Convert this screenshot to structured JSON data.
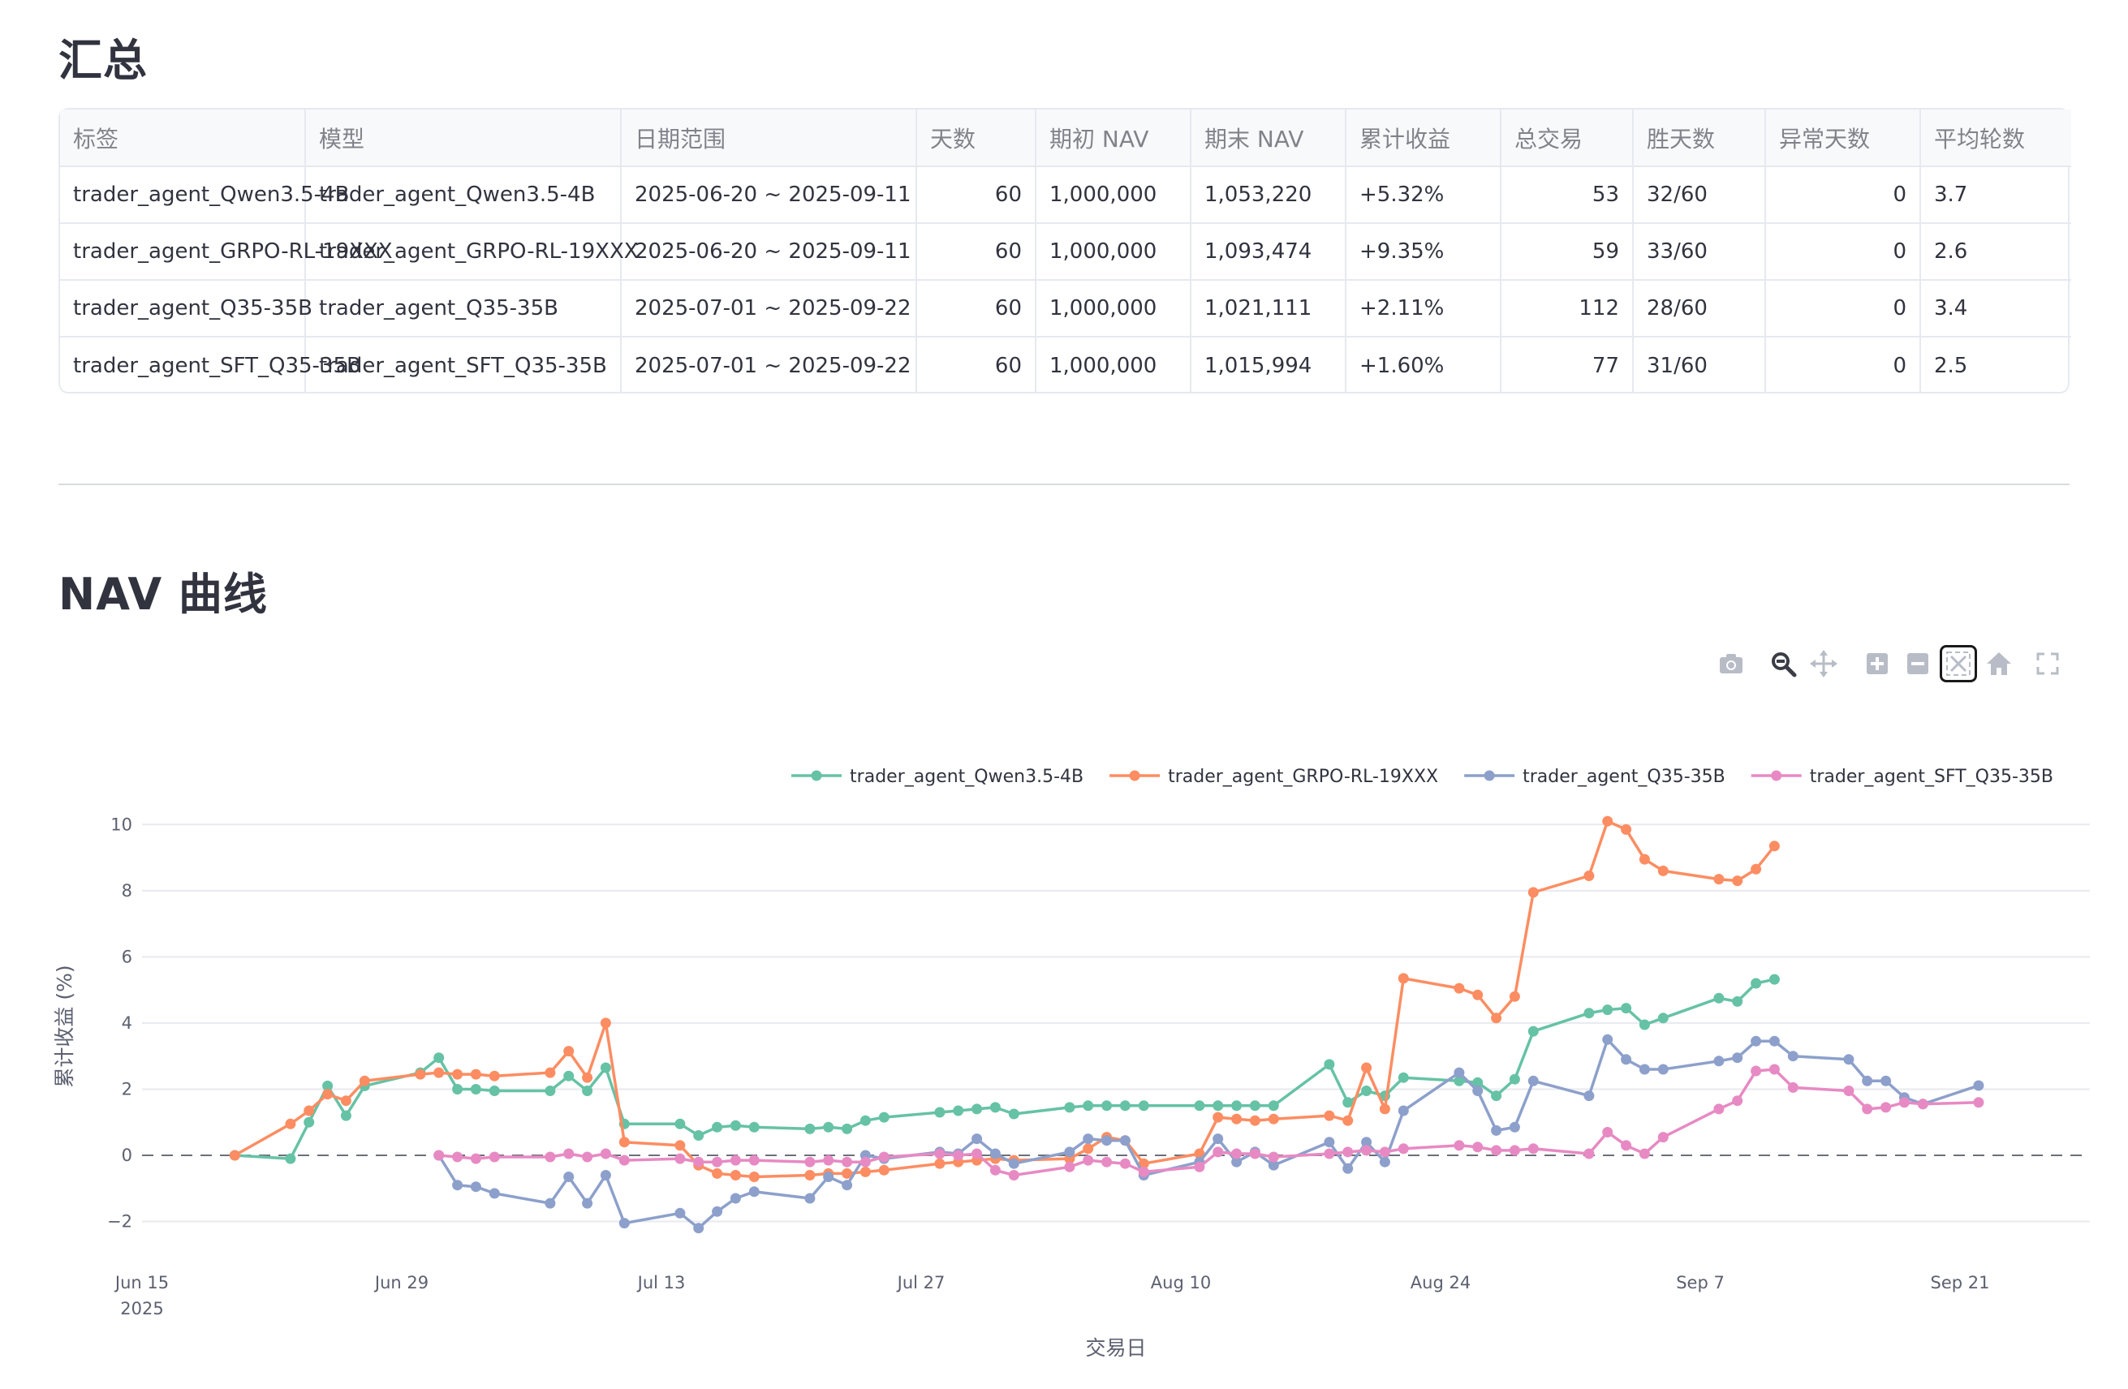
{
  "summary": {
    "title": "汇总",
    "columns": [
      "标签",
      "模型",
      "日期范围",
      "天数",
      "期初 NAV",
      "期末 NAV",
      "累计收益",
      "总交易",
      "胜天数",
      "异常天数",
      "平均轮数"
    ],
    "rows": [
      [
        "trader_agent_Qwen3.5-4B",
        "trader_agent_Qwen3.5-4B",
        "2025-06-20 ~ 2025-09-11",
        "60",
        "1,000,000",
        "1,053,220",
        "+5.32%",
        "53",
        "32/60",
        "0",
        "3.7"
      ],
      [
        "trader_agent_GRPO-RL-19XXX",
        "trader_agent_GRPO-RL-19XXX",
        "2025-06-20 ~ 2025-09-11",
        "60",
        "1,000,000",
        "1,093,474",
        "+9.35%",
        "59",
        "33/60",
        "0",
        "2.6"
      ],
      [
        "trader_agent_Q35-35B",
        "trader_agent_Q35-35B",
        "2025-07-01 ~ 2025-09-22",
        "60",
        "1,000,000",
        "1,021,111",
        "+2.11%",
        "112",
        "28/60",
        "0",
        "3.4"
      ],
      [
        "trader_agent_SFT_Q35-35B",
        "trader_agent_SFT_Q35-35B",
        "2025-07-01 ~ 2025-09-22",
        "60",
        "1,000,000",
        "1,015,994",
        "+1.60%",
        "77",
        "31/60",
        "0",
        "2.5"
      ]
    ]
  },
  "nav": {
    "title": "NAV 曲线",
    "toolbar": [
      {
        "name": "camera-icon"
      },
      {
        "name": "zoom-icon"
      },
      {
        "name": "pan-icon"
      },
      {
        "name": "zoom-in-icon"
      },
      {
        "name": "zoom-out-icon"
      },
      {
        "name": "autoscale-icon"
      },
      {
        "name": "home-icon"
      },
      {
        "name": "fullscreen-icon"
      }
    ]
  },
  "chart_data": {
    "type": "line",
    "xlabel": "交易日",
    "ylabel": "累计收益 (%)",
    "xlim": [
      "2025-06-15",
      "2025-09-28"
    ],
    "ylim": [
      -2.6,
      10.4
    ],
    "x_ticks": [
      {
        "date": "2025-06-15",
        "label": "Jun 15",
        "sub": "2025"
      },
      {
        "date": "2025-06-29",
        "label": "Jun 29"
      },
      {
        "date": "2025-07-13",
        "label": "Jul 13"
      },
      {
        "date": "2025-07-27",
        "label": "Jul 27"
      },
      {
        "date": "2025-08-10",
        "label": "Aug 10"
      },
      {
        "date": "2025-08-24",
        "label": "Aug 24"
      },
      {
        "date": "2025-09-07",
        "label": "Sep 7"
      },
      {
        "date": "2025-09-21",
        "label": "Sep 21"
      }
    ],
    "y_ticks": [
      -2,
      0,
      2,
      4,
      6,
      8,
      10
    ],
    "zero_line": "dashed",
    "grid": true,
    "legend": "top-right",
    "series": [
      {
        "name": "trader_agent_Qwen3.5-4B",
        "color": "#66c2a5",
        "points": [
          [
            "2025-06-20",
            0
          ],
          [
            "2025-06-23",
            -0.1
          ],
          [
            "2025-06-24",
            1.0
          ],
          [
            "2025-06-25",
            2.1
          ],
          [
            "2025-06-26",
            1.2
          ],
          [
            "2025-06-27",
            2.1
          ],
          [
            "2025-06-30",
            2.5
          ],
          [
            "2025-07-01",
            2.95
          ],
          [
            "2025-07-02",
            2.0
          ],
          [
            "2025-07-03",
            2.0
          ],
          [
            "2025-07-04",
            1.95
          ],
          [
            "2025-07-07",
            1.95
          ],
          [
            "2025-07-08",
            2.4
          ],
          [
            "2025-07-09",
            1.95
          ],
          [
            "2025-07-10",
            2.65
          ],
          [
            "2025-07-11",
            0.95
          ],
          [
            "2025-07-14",
            0.95
          ],
          [
            "2025-07-15",
            0.6
          ],
          [
            "2025-07-16",
            0.85
          ],
          [
            "2025-07-17",
            0.9
          ],
          [
            "2025-07-18",
            0.85
          ],
          [
            "2025-07-21",
            0.8
          ],
          [
            "2025-07-22",
            0.85
          ],
          [
            "2025-07-23",
            0.8
          ],
          [
            "2025-07-24",
            1.05
          ],
          [
            "2025-07-25",
            1.15
          ],
          [
            "2025-07-28",
            1.3
          ],
          [
            "2025-07-29",
            1.35
          ],
          [
            "2025-07-30",
            1.4
          ],
          [
            "2025-07-31",
            1.45
          ],
          [
            "2025-08-01",
            1.25
          ],
          [
            "2025-08-04",
            1.45
          ],
          [
            "2025-08-05",
            1.5
          ],
          [
            "2025-08-06",
            1.5
          ],
          [
            "2025-08-07",
            1.5
          ],
          [
            "2025-08-08",
            1.5
          ],
          [
            "2025-08-11",
            1.5
          ],
          [
            "2025-08-12",
            1.5
          ],
          [
            "2025-08-13",
            1.5
          ],
          [
            "2025-08-14",
            1.5
          ],
          [
            "2025-08-15",
            1.5
          ],
          [
            "2025-08-18",
            2.75
          ],
          [
            "2025-08-19",
            1.6
          ],
          [
            "2025-08-20",
            1.95
          ],
          [
            "2025-08-21",
            1.8
          ],
          [
            "2025-08-22",
            2.35
          ],
          [
            "2025-08-25",
            2.25
          ],
          [
            "2025-08-26",
            2.2
          ],
          [
            "2025-08-27",
            1.8
          ],
          [
            "2025-08-28",
            2.3
          ],
          [
            "2025-08-29",
            3.75
          ],
          [
            "2025-09-01",
            4.3
          ],
          [
            "2025-09-02",
            4.4
          ],
          [
            "2025-09-03",
            4.45
          ],
          [
            "2025-09-04",
            3.95
          ],
          [
            "2025-09-05",
            4.15
          ],
          [
            "2025-09-08",
            4.75
          ],
          [
            "2025-09-09",
            4.65
          ],
          [
            "2025-09-10",
            5.2
          ],
          [
            "2025-09-11",
            5.32
          ]
        ]
      },
      {
        "name": "trader_agent_GRPO-RL-19XXX",
        "color": "#fc8d62",
        "points": [
          [
            "2025-06-20",
            0
          ],
          [
            "2025-06-23",
            0.95
          ],
          [
            "2025-06-24",
            1.35
          ],
          [
            "2025-06-25",
            1.85
          ],
          [
            "2025-06-26",
            1.65
          ],
          [
            "2025-06-27",
            2.25
          ],
          [
            "2025-06-30",
            2.45
          ],
          [
            "2025-07-01",
            2.5
          ],
          [
            "2025-07-02",
            2.45
          ],
          [
            "2025-07-03",
            2.45
          ],
          [
            "2025-07-04",
            2.4
          ],
          [
            "2025-07-07",
            2.5
          ],
          [
            "2025-07-08",
            3.15
          ],
          [
            "2025-07-09",
            2.35
          ],
          [
            "2025-07-10",
            4.0
          ],
          [
            "2025-07-11",
            0.4
          ],
          [
            "2025-07-14",
            0.3
          ],
          [
            "2025-07-15",
            -0.3
          ],
          [
            "2025-07-16",
            -0.55
          ],
          [
            "2025-07-17",
            -0.6
          ],
          [
            "2025-07-18",
            -0.65
          ],
          [
            "2025-07-21",
            -0.6
          ],
          [
            "2025-07-22",
            -0.55
          ],
          [
            "2025-07-23",
            -0.55
          ],
          [
            "2025-07-24",
            -0.5
          ],
          [
            "2025-07-25",
            -0.45
          ],
          [
            "2025-07-28",
            -0.25
          ],
          [
            "2025-07-29",
            -0.2
          ],
          [
            "2025-07-30",
            -0.15
          ],
          [
            "2025-07-31",
            -0.1
          ],
          [
            "2025-08-01",
            -0.15
          ],
          [
            "2025-08-04",
            -0.1
          ],
          [
            "2025-08-05",
            0.2
          ],
          [
            "2025-08-06",
            0.55
          ],
          [
            "2025-08-07",
            0.45
          ],
          [
            "2025-08-08",
            -0.25
          ],
          [
            "2025-08-11",
            0.05
          ],
          [
            "2025-08-12",
            1.15
          ],
          [
            "2025-08-13",
            1.1
          ],
          [
            "2025-08-14",
            1.05
          ],
          [
            "2025-08-15",
            1.1
          ],
          [
            "2025-08-18",
            1.2
          ],
          [
            "2025-08-19",
            1.05
          ],
          [
            "2025-08-20",
            2.65
          ],
          [
            "2025-08-21",
            1.4
          ],
          [
            "2025-08-22",
            5.35
          ],
          [
            "2025-08-25",
            5.05
          ],
          [
            "2025-08-26",
            4.85
          ],
          [
            "2025-08-27",
            4.15
          ],
          [
            "2025-08-28",
            4.8
          ],
          [
            "2025-08-29",
            7.95
          ],
          [
            "2025-09-01",
            8.45
          ],
          [
            "2025-09-02",
            10.1
          ],
          [
            "2025-09-03",
            9.85
          ],
          [
            "2025-09-04",
            8.95
          ],
          [
            "2025-09-05",
            8.6
          ],
          [
            "2025-09-08",
            8.35
          ],
          [
            "2025-09-09",
            8.3
          ],
          [
            "2025-09-10",
            8.65
          ],
          [
            "2025-09-11",
            9.35
          ]
        ]
      },
      {
        "name": "trader_agent_Q35-35B",
        "color": "#8da0cb",
        "points": [
          [
            "2025-07-01",
            0
          ],
          [
            "2025-07-02",
            -0.9
          ],
          [
            "2025-07-03",
            -0.95
          ],
          [
            "2025-07-04",
            -1.15
          ],
          [
            "2025-07-07",
            -1.45
          ],
          [
            "2025-07-08",
            -0.65
          ],
          [
            "2025-07-09",
            -1.45
          ],
          [
            "2025-07-10",
            -0.6
          ],
          [
            "2025-07-11",
            -2.05
          ],
          [
            "2025-07-14",
            -1.75
          ],
          [
            "2025-07-15",
            -2.2
          ],
          [
            "2025-07-16",
            -1.7
          ],
          [
            "2025-07-17",
            -1.3
          ],
          [
            "2025-07-18",
            -1.1
          ],
          [
            "2025-07-21",
            -1.3
          ],
          [
            "2025-07-22",
            -0.65
          ],
          [
            "2025-07-23",
            -0.9
          ],
          [
            "2025-07-24",
            0
          ],
          [
            "2025-07-25",
            -0.1
          ],
          [
            "2025-07-28",
            0.1
          ],
          [
            "2025-07-29",
            0.05
          ],
          [
            "2025-07-30",
            0.5
          ],
          [
            "2025-07-31",
            0.05
          ],
          [
            "2025-08-01",
            -0.25
          ],
          [
            "2025-08-04",
            0.1
          ],
          [
            "2025-08-05",
            0.5
          ],
          [
            "2025-08-06",
            0.45
          ],
          [
            "2025-08-07",
            0.45
          ],
          [
            "2025-08-08",
            -0.6
          ],
          [
            "2025-08-11",
            -0.2
          ],
          [
            "2025-08-12",
            0.5
          ],
          [
            "2025-08-13",
            -0.2
          ],
          [
            "2025-08-14",
            0.1
          ],
          [
            "2025-08-15",
            -0.3
          ],
          [
            "2025-08-18",
            0.4
          ],
          [
            "2025-08-19",
            -0.4
          ],
          [
            "2025-08-20",
            0.4
          ],
          [
            "2025-08-21",
            -0.2
          ],
          [
            "2025-08-22",
            1.35
          ],
          [
            "2025-08-25",
            2.5
          ],
          [
            "2025-08-26",
            1.95
          ],
          [
            "2025-08-27",
            0.75
          ],
          [
            "2025-08-28",
            0.85
          ],
          [
            "2025-08-29",
            2.25
          ],
          [
            "2025-09-01",
            1.8
          ],
          [
            "2025-09-02",
            3.5
          ],
          [
            "2025-09-03",
            2.9
          ],
          [
            "2025-09-04",
            2.6
          ],
          [
            "2025-09-05",
            2.6
          ],
          [
            "2025-09-08",
            2.85
          ],
          [
            "2025-09-09",
            2.95
          ],
          [
            "2025-09-10",
            3.45
          ],
          [
            "2025-09-11",
            3.45
          ],
          [
            "2025-09-12",
            3.0
          ],
          [
            "2025-09-15",
            2.9
          ],
          [
            "2025-09-16",
            2.25
          ],
          [
            "2025-09-17",
            2.25
          ],
          [
            "2025-09-18",
            1.75
          ],
          [
            "2025-09-19",
            1.55
          ],
          [
            "2025-09-22",
            2.11
          ]
        ]
      },
      {
        "name": "trader_agent_SFT_Q35-35B",
        "color": "#e78ac3",
        "points": [
          [
            "2025-07-01",
            0
          ],
          [
            "2025-07-02",
            -0.05
          ],
          [
            "2025-07-03",
            -0.1
          ],
          [
            "2025-07-04",
            -0.05
          ],
          [
            "2025-07-07",
            -0.05
          ],
          [
            "2025-07-08",
            0.05
          ],
          [
            "2025-07-09",
            -0.05
          ],
          [
            "2025-07-10",
            0.05
          ],
          [
            "2025-07-11",
            -0.15
          ],
          [
            "2025-07-14",
            -0.1
          ],
          [
            "2025-07-15",
            -0.2
          ],
          [
            "2025-07-16",
            -0.2
          ],
          [
            "2025-07-17",
            -0.15
          ],
          [
            "2025-07-18",
            -0.15
          ],
          [
            "2025-07-21",
            -0.2
          ],
          [
            "2025-07-22",
            -0.15
          ],
          [
            "2025-07-23",
            -0.2
          ],
          [
            "2025-07-24",
            -0.2
          ],
          [
            "2025-07-25",
            -0.05
          ],
          [
            "2025-07-28",
            0.05
          ],
          [
            "2025-07-29",
            0
          ],
          [
            "2025-07-30",
            0.05
          ],
          [
            "2025-07-31",
            -0.45
          ],
          [
            "2025-08-01",
            -0.6
          ],
          [
            "2025-08-04",
            -0.35
          ],
          [
            "2025-08-05",
            -0.15
          ],
          [
            "2025-08-06",
            -0.2
          ],
          [
            "2025-08-07",
            -0.25
          ],
          [
            "2025-08-08",
            -0.5
          ],
          [
            "2025-08-11",
            -0.35
          ],
          [
            "2025-08-12",
            0.1
          ],
          [
            "2025-08-13",
            0.05
          ],
          [
            "2025-08-14",
            0.05
          ],
          [
            "2025-08-15",
            -0.05
          ],
          [
            "2025-08-18",
            0.05
          ],
          [
            "2025-08-19",
            0.1
          ],
          [
            "2025-08-20",
            0.15
          ],
          [
            "2025-08-21",
            0.1
          ],
          [
            "2025-08-22",
            0.2
          ],
          [
            "2025-08-25",
            0.3
          ],
          [
            "2025-08-26",
            0.25
          ],
          [
            "2025-08-27",
            0.15
          ],
          [
            "2025-08-28",
            0.15
          ],
          [
            "2025-08-29",
            0.2
          ],
          [
            "2025-09-01",
            0.05
          ],
          [
            "2025-09-02",
            0.7
          ],
          [
            "2025-09-03",
            0.3
          ],
          [
            "2025-09-04",
            0.05
          ],
          [
            "2025-09-05",
            0.55
          ],
          [
            "2025-09-08",
            1.4
          ],
          [
            "2025-09-09",
            1.65
          ],
          [
            "2025-09-10",
            2.55
          ],
          [
            "2025-09-11",
            2.6
          ],
          [
            "2025-09-12",
            2.05
          ],
          [
            "2025-09-15",
            1.95
          ],
          [
            "2025-09-16",
            1.4
          ],
          [
            "2025-09-17",
            1.45
          ],
          [
            "2025-09-18",
            1.6
          ],
          [
            "2025-09-19",
            1.55
          ],
          [
            "2025-09-22",
            1.6
          ]
        ]
      }
    ]
  }
}
